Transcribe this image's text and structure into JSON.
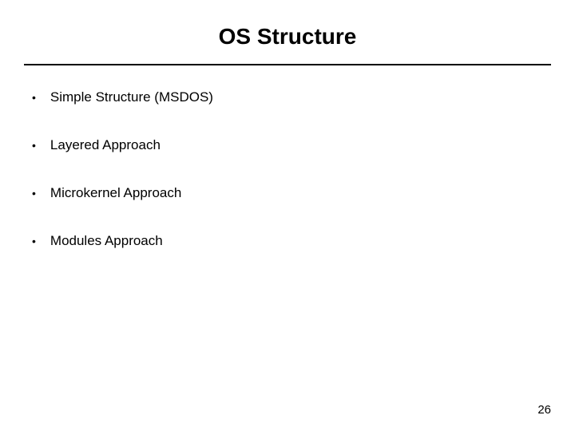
{
  "slide": {
    "title": "OS Structure",
    "bullets": [
      "Simple Structure (MSDOS)",
      "Layered Approach",
      "Microkernel Approach",
      "Modules Approach"
    ],
    "page_number": "26"
  },
  "styling": {
    "background_color": "#ffffff",
    "text_color": "#000000",
    "title_fontsize": 28,
    "bullet_fontsize": 17,
    "page_number_fontsize": 15,
    "divider_color": "#000000",
    "divider_width": 2,
    "font_family": "Arial, Helvetica, sans-serif"
  }
}
